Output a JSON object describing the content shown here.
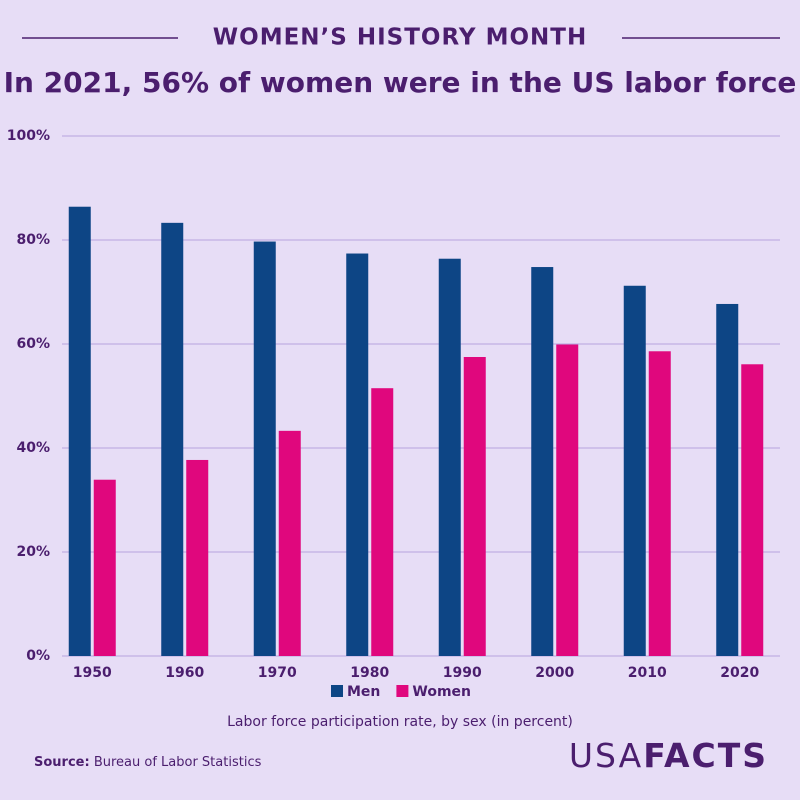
{
  "chart_data": {
    "type": "bar",
    "header": "WOMEN’S HISTORY MONTH",
    "title": "In 2021, 56% of women were in the US labor force",
    "categories": [
      "1950",
      "1960",
      "1970",
      "1980",
      "1990",
      "2000",
      "2010",
      "2020"
    ],
    "series": [
      {
        "name": "Men",
        "color": "#0d4585",
        "values": [
          86.4,
          83.3,
          79.7,
          77.4,
          76.4,
          74.8,
          71.2,
          67.7
        ]
      },
      {
        "name": "Women",
        "color": "#e0077d",
        "values": [
          33.9,
          37.7,
          43.3,
          51.5,
          57.5,
          59.9,
          58.6,
          56.1
        ]
      }
    ],
    "ylim": [
      0,
      100
    ],
    "yticks": [
      {
        "value": 0,
        "label": "0%"
      },
      {
        "value": 20,
        "label": "20%"
      },
      {
        "value": 40,
        "label": "40%"
      },
      {
        "value": 60,
        "label": "60%"
      },
      {
        "value": 80,
        "label": "80%"
      },
      {
        "value": 100,
        "label": "100%"
      }
    ],
    "grid": true,
    "xlabel": "Labor force participation rate, by sex (in percent)",
    "source": {
      "label": "Source:",
      "text": "Bureau of Labor Statistics"
    },
    "logo": {
      "light": "USA",
      "bold": "FACTS"
    }
  }
}
